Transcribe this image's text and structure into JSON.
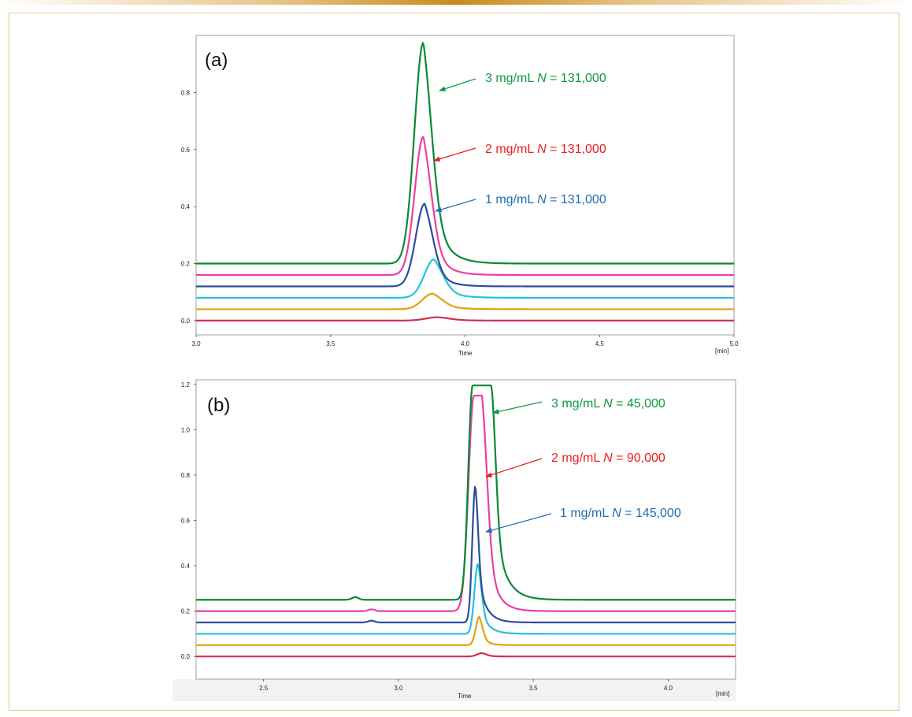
{
  "colors": {
    "c3": "#078a36",
    "c2": "#ea3fa0",
    "c1": "#2e4c9b",
    "c4": "#22c2da",
    "c5": "#e2a10d",
    "c6": "#cf2f55",
    "ann_green": "#0a9a40",
    "ann_red": "#ee1c1c",
    "ann_blue": "#1f6cb5"
  },
  "chart_data": [
    {
      "type": "line",
      "panel_label": "(a)",
      "xlabel": "Time",
      "xunit": "[min]",
      "xlim": [
        3.0,
        5.0
      ],
      "ylim": [
        -0.05,
        1.0
      ],
      "xticks": [
        3.0,
        3.5,
        4.0,
        4.5,
        5.0
      ],
      "xtick_labels": [
        "3.0",
        "3.5",
        "4.0",
        "4.5",
        "5.0"
      ],
      "yticks": [
        0.0,
        0.2,
        0.4,
        0.6,
        0.8
      ],
      "ytick_labels": [
        "0.0",
        "0.2",
        "0.4",
        "0.6",
        "0.8"
      ],
      "series": [
        {
          "name": "trace-red",
          "color_key": "c6",
          "baseline": 0.0,
          "height": 0.012,
          "center": 3.9,
          "sigma": 0.045,
          "tail": 0.06
        },
        {
          "name": "trace-orange",
          "color_key": "c5",
          "baseline": 0.04,
          "height": 0.055,
          "center": 3.88,
          "sigma": 0.038,
          "tail": 0.055
        },
        {
          "name": "trace-cyan",
          "color_key": "c4",
          "baseline": 0.08,
          "height": 0.135,
          "center": 3.885,
          "sigma": 0.036,
          "tail": 0.05
        },
        {
          "name": "trace-1mg",
          "color_key": "c1",
          "baseline": 0.12,
          "height": 0.29,
          "center": 3.85,
          "sigma": 0.033,
          "tail": 0.045
        },
        {
          "name": "trace-2mg",
          "color_key": "c2",
          "baseline": 0.16,
          "height": 0.485,
          "center": 3.845,
          "sigma": 0.032,
          "tail": 0.045
        },
        {
          "name": "trace-3mg",
          "color_key": "c3",
          "baseline": 0.2,
          "height": 0.775,
          "center": 3.845,
          "sigma": 0.033,
          "tail": 0.05
        }
      ],
      "annotations": [
        {
          "conc": "3 mg/mL ",
          "n_symbol": "N",
          "n_value": " = 131,000",
          "color_key": "ann_green"
        },
        {
          "conc": "2 mg/mL ",
          "n_symbol": "N",
          "n_value": " = 131,000",
          "color_key": "ann_red"
        },
        {
          "conc": "1 mg/mL ",
          "n_symbol": "N",
          "n_value": " = 131,000",
          "color_key": "ann_blue"
        }
      ]
    },
    {
      "type": "line",
      "panel_label": "(b)",
      "xlabel": "Time",
      "xunit": "[min]",
      "xlim": [
        2.25,
        4.25
      ],
      "ylim": [
        -0.1,
        1.22
      ],
      "xticks": [
        2.5,
        3.0,
        3.5,
        4.0
      ],
      "xtick_labels": [
        "2.5",
        "3.0",
        "3.5",
        "4.0"
      ],
      "yticks": [
        0.0,
        0.2,
        0.4,
        0.6,
        0.8,
        1.0,
        1.2
      ],
      "ytick_labels": [
        "0.0",
        "0.2",
        "0.4",
        "0.6",
        "0.8",
        "1.0",
        "1.2"
      ],
      "series": [
        {
          "name": "trace-red",
          "color_key": "c6",
          "baseline": 0.0,
          "height": 0.015,
          "center": 3.31,
          "sigma": 0.018,
          "tail": 0.025
        },
        {
          "name": "trace-orange",
          "color_key": "c5",
          "baseline": 0.05,
          "height": 0.125,
          "center": 3.3,
          "sigma": 0.013,
          "tail": 0.022
        },
        {
          "name": "trace-cyan",
          "color_key": "c4",
          "baseline": 0.1,
          "height": 0.31,
          "center": 3.295,
          "sigma": 0.013,
          "tail": 0.03
        },
        {
          "name": "trace-1mg",
          "color_key": "c1",
          "baseline": 0.15,
          "height": 0.605,
          "center": 3.285,
          "sigma": 0.011,
          "tail": 0.03,
          "bump": 0.008
        },
        {
          "name": "trace-2mg",
          "color_key": "c2",
          "baseline": 0.2,
          "height": 0.95,
          "center": 3.295,
          "sigma": 0.02,
          "tail": 0.035,
          "flat": 0.03,
          "bump": 0.008
        },
        {
          "name": "trace-3mg",
          "color_key": "c3",
          "baseline": 0.25,
          "height": 0.945,
          "center": 3.31,
          "sigma": 0.016,
          "tail": 0.04,
          "flat": 0.07,
          "bump": 0.012,
          "bump_center": 2.84
        }
      ],
      "annotations": [
        {
          "conc": "3 mg/mL ",
          "n_symbol": "N",
          "n_value": " = 45,000",
          "color_key": "ann_green"
        },
        {
          "conc": "2 mg/mL ",
          "n_symbol": "N",
          "n_value": " = 90,000",
          "color_key": "ann_red"
        },
        {
          "conc": "1 mg/mL ",
          "n_symbol": "N",
          "n_value": " = 145,000",
          "color_key": "ann_blue"
        }
      ]
    }
  ]
}
